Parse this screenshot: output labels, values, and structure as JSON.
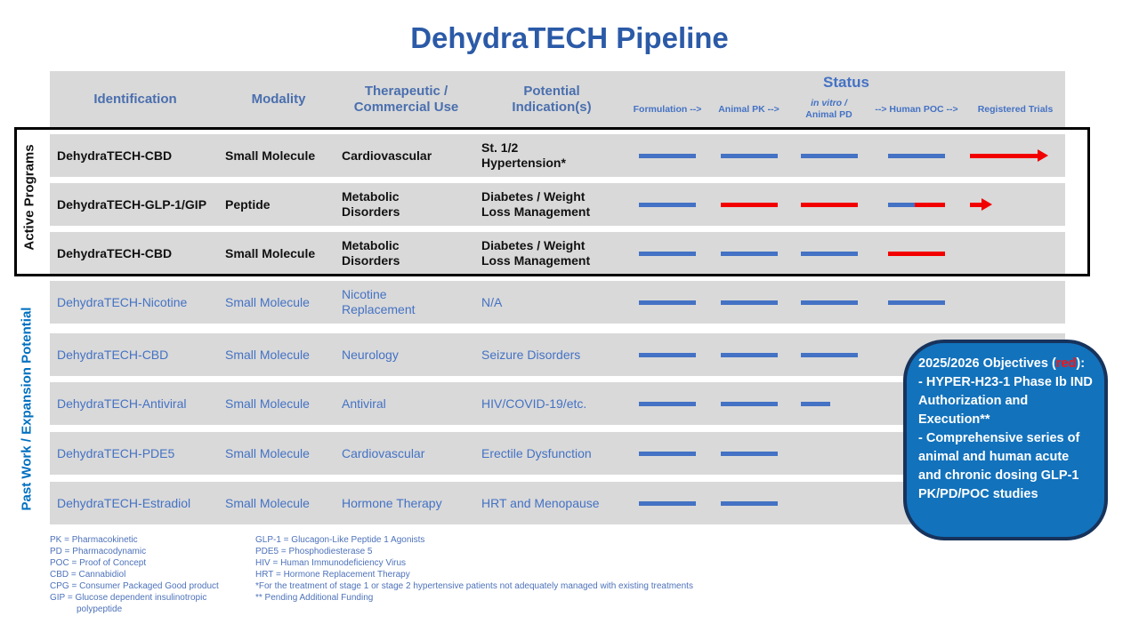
{
  "title": "DehydraTECH Pipeline",
  "header": {
    "columns": [
      "Identification",
      "Modality",
      "Therapeutic / Commercial Use",
      "Potential Indication(s)"
    ],
    "status_title": "Status",
    "status_cols": {
      "formulation": "Formulation -->",
      "animal_pk": "Animal PK -->",
      "invitro_line1": "in vitro /",
      "invitro_line2": "Animal PD",
      "human_poc": "--> Human POC -->",
      "registered_trials": "Registered Trials"
    }
  },
  "sections": {
    "active": "Active Programs",
    "past": "Past Work / Expansion Potential"
  },
  "rows": [
    {
      "name": "DehydraTECH-CBD",
      "modality": "Small Molecule",
      "use": "Cardiovascular",
      "indication": "St. 1/2 Hypertension*",
      "section": "active",
      "bars": [
        {
          "t": "line",
          "c": "blue"
        },
        {
          "t": "line",
          "c": "blue"
        },
        {
          "t": "line",
          "c": "blue"
        },
        {
          "t": "line",
          "c": "blue"
        },
        {
          "t": "arrow",
          "c": "red",
          "size": "long"
        }
      ]
    },
    {
      "name": "DehydraTECH-GLP-1/GIP",
      "modality": "Peptide",
      "use": "Metabolic Disorders",
      "indication": "Diabetes / Weight Loss Management",
      "section": "active",
      "bars": [
        {
          "t": "line",
          "c": "blue"
        },
        {
          "t": "line",
          "c": "red"
        },
        {
          "t": "line",
          "c": "red"
        },
        {
          "t": "split",
          "c1": "blue",
          "c2": "red"
        },
        {
          "t": "arrow",
          "c": "red",
          "size": "short"
        }
      ]
    },
    {
      "name": "DehydraTECH-CBD",
      "modality": "Small Molecule",
      "use": "Metabolic Disorders",
      "indication": "Diabetes / Weight Loss Management",
      "section": "active",
      "bars": [
        {
          "t": "line",
          "c": "blue"
        },
        {
          "t": "line",
          "c": "blue"
        },
        {
          "t": "line",
          "c": "blue"
        },
        {
          "t": "line",
          "c": "red"
        },
        null
      ]
    },
    {
      "name": "DehydraTECH-Nicotine",
      "modality": "Small Molecule",
      "use": "Nicotine Replacement",
      "indication": "N/A",
      "section": "past",
      "bars": [
        {
          "t": "line",
          "c": "blue"
        },
        {
          "t": "line",
          "c": "blue"
        },
        {
          "t": "line",
          "c": "blue"
        },
        {
          "t": "line",
          "c": "blue"
        },
        null
      ]
    },
    {
      "name": "DehydraTECH-CBD",
      "modality": "Small Molecule",
      "use": "Neurology",
      "indication": "Seizure Disorders",
      "section": "past",
      "bars": [
        {
          "t": "line",
          "c": "blue"
        },
        {
          "t": "line",
          "c": "blue"
        },
        {
          "t": "line",
          "c": "blue"
        },
        null,
        null
      ]
    },
    {
      "name": "DehydraTECH-Antiviral",
      "modality": "Small Molecule",
      "use": "Antiviral",
      "indication": "HIV/COVID-19/etc.",
      "section": "past",
      "bars": [
        {
          "t": "line",
          "c": "blue"
        },
        {
          "t": "line",
          "c": "blue"
        },
        {
          "t": "line",
          "c": "blue",
          "w": "half"
        },
        null,
        null
      ]
    },
    {
      "name": "DehydraTECH-PDE5",
      "modality": "Small Molecule",
      "use": "Cardiovascular",
      "indication": "Erectile Dysfunction",
      "section": "past",
      "bars": [
        {
          "t": "line",
          "c": "blue"
        },
        {
          "t": "line",
          "c": "blue"
        },
        null,
        null,
        null
      ]
    },
    {
      "name": "DehydraTECH-Estradiol",
      "modality": "Small Molecule",
      "use": "Hormone Therapy",
      "indication": "HRT and Menopause",
      "section": "past",
      "bars": [
        {
          "t": "line",
          "c": "blue"
        },
        {
          "t": "line",
          "c": "blue"
        },
        null,
        null,
        null
      ]
    }
  ],
  "callout": {
    "title_pre": "2025/2026 Objectives (",
    "title_red": "red",
    "title_post": "):",
    "line1": "- HYPER-H23-1 Phase Ib IND Authorization and Execution**",
    "line2": "- Comprehensive series of animal and human acute and chronic dosing GLP-1 PK/PD/POC studies"
  },
  "footnotes": {
    "left": [
      "PK = Pharmacokinetic",
      "PD = Pharmacodynamic",
      "POC = Proof of Concept",
      "CBD = Cannabidiol",
      "CPG = Consumer Packaged Good product",
      "GIP = Glucose dependent insulinotropic",
      "polypeptide"
    ],
    "right": [
      "GLP-1 = Glucagon-Like Peptide 1 Agonists",
      "PDE5 = Phosphodiesterase 5",
      "HIV = Human Immunodeficiency Virus",
      "HRT = Hormone Replacement Therapy",
      "*For the treatment of stage 1 or stage 2 hypertensive patients not adequately managed with existing treatments",
      "** Pending Additional Funding"
    ]
  },
  "colors": {
    "accent_blue": "#4472C4",
    "progress_red": "#F20000",
    "stripe_gray": "#D9D9D9",
    "title_blue": "#2B5AA7",
    "past_label_blue": "#0070C0",
    "callout_fill": "#1272BC",
    "callout_border": "#17335C"
  }
}
